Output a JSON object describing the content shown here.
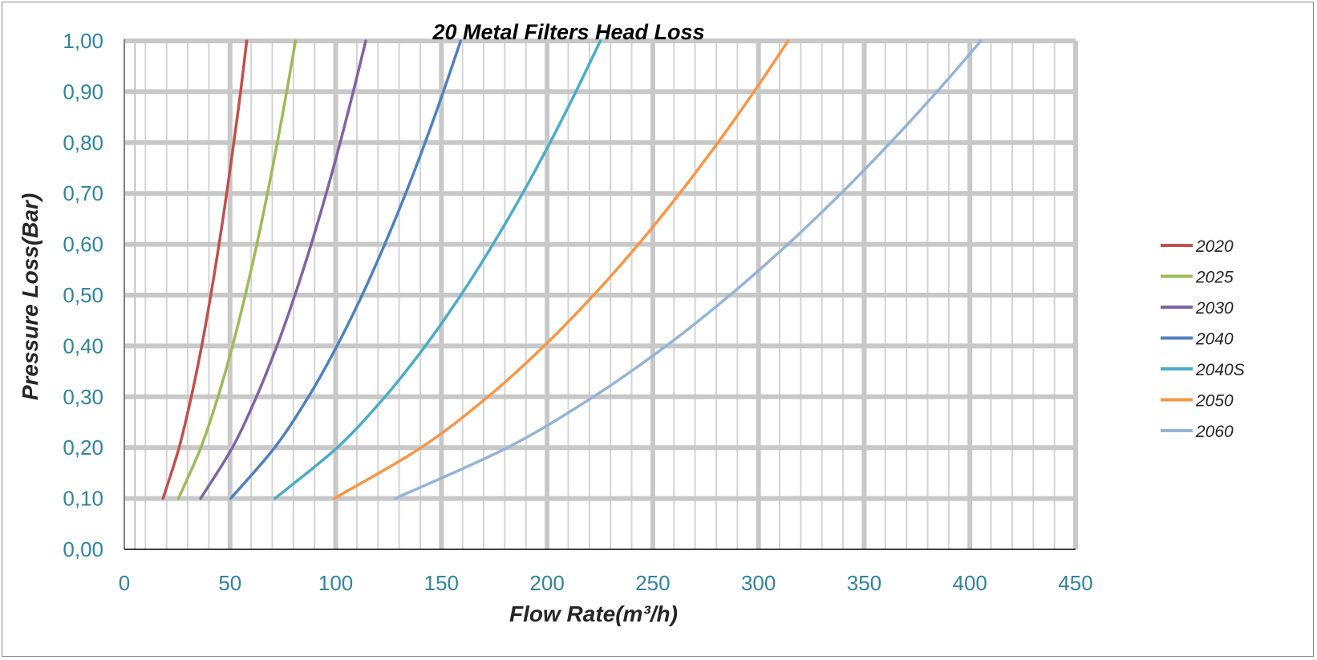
{
  "chart_data": {
    "type": "line",
    "title": "20 Metal Filters Head Loss",
    "xlabel": "Flow Rate(m³/h)",
    "ylabel": "Pressure Loss(Bar)",
    "xlim": [
      0,
      450
    ],
    "ylim": [
      0,
      1.0
    ],
    "x_ticks": [
      "0",
      "50",
      "100",
      "150",
      "200",
      "250",
      "300",
      "350",
      "400",
      "450"
    ],
    "y_ticks": [
      "0,00",
      "0,10",
      "0,20",
      "0,30",
      "0,40",
      "0,50",
      "0,60",
      "0,70",
      "0,80",
      "0,90",
      "1,00"
    ],
    "grid": true,
    "legend_position": "right",
    "series": [
      {
        "name": "2020",
        "color": "#C0504D",
        "x": [
          18.3,
          25.9,
          31.7,
          36.6,
          40.9,
          44.8,
          48.4,
          51.8,
          55.0,
          57.9
        ],
        "y": [
          0.1,
          0.2,
          0.3,
          0.4,
          0.5,
          0.6,
          0.7,
          0.8,
          0.9,
          1.0
        ]
      },
      {
        "name": "2025",
        "color": "#9BBB59",
        "x": [
          25.6,
          36.2,
          44.3,
          51.2,
          57.2,
          62.7,
          67.7,
          72.4,
          76.8,
          81.0
        ],
        "y": [
          0.1,
          0.2,
          0.3,
          0.4,
          0.5,
          0.6,
          0.7,
          0.8,
          0.9,
          1.0
        ]
      },
      {
        "name": "2030",
        "color": "#8064A2",
        "x": [
          36.1,
          51.1,
          62.5,
          72.2,
          80.7,
          88.4,
          95.5,
          102.1,
          108.3,
          114.2
        ],
        "y": [
          0.1,
          0.2,
          0.3,
          0.4,
          0.5,
          0.6,
          0.7,
          0.8,
          0.9,
          1.0
        ]
      },
      {
        "name": "2040",
        "color": "#4F81BD",
        "x": [
          50.3,
          71.1,
          87.1,
          100.6,
          112.5,
          123.2,
          133.1,
          142.3,
          150.9,
          159.1
        ],
        "y": [
          0.1,
          0.2,
          0.3,
          0.4,
          0.5,
          0.6,
          0.7,
          0.8,
          0.9,
          1.0
        ]
      },
      {
        "name": "2040S",
        "color": "#4BACC6",
        "x": [
          71.2,
          100.7,
          123.3,
          142.4,
          159.2,
          174.4,
          188.4,
          201.4,
          213.6,
          225.2
        ],
        "y": [
          0.1,
          0.2,
          0.3,
          0.4,
          0.5,
          0.6,
          0.7,
          0.8,
          0.9,
          1.0
        ]
      },
      {
        "name": "2050",
        "color": "#F79646",
        "x": [
          99.3,
          140.4,
          172.0,
          198.6,
          222.0,
          243.2,
          262.7,
          280.8,
          297.9,
          314.0
        ],
        "y": [
          0.1,
          0.2,
          0.3,
          0.4,
          0.5,
          0.6,
          0.7,
          0.8,
          0.9,
          1.0
        ]
      },
      {
        "name": "2060",
        "color": "#95B3D7",
        "x": [
          128.1,
          181.2,
          221.9,
          256.3,
          286.5,
          313.9,
          339.0,
          362.4,
          384.4,
          405.2
        ],
        "y": [
          0.1,
          0.2,
          0.3,
          0.4,
          0.5,
          0.6,
          0.7,
          0.8,
          0.9,
          1.0
        ]
      }
    ]
  }
}
